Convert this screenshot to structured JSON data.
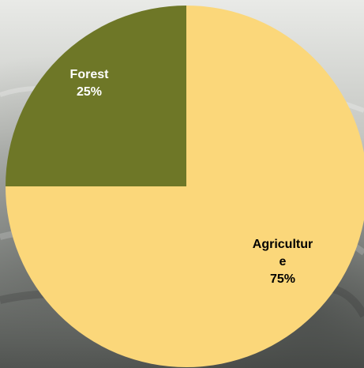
{
  "chart_data": {
    "type": "pie",
    "title": "",
    "slices": [
      {
        "label": "Forest",
        "label_lines": [
          "Forest"
        ],
        "percent_label": "25%",
        "value": 25,
        "color": "#6e7727",
        "text_color": "#ffffff"
      },
      {
        "label": "Agriculture",
        "label_lines": [
          "Agricultur",
          "e"
        ],
        "percent_label": "75%",
        "value": 75,
        "color": "#fbd77a",
        "text_color": "#000000"
      }
    ],
    "start_angle_deg": 0,
    "direction": "counterclockwise",
    "legend": "none"
  }
}
